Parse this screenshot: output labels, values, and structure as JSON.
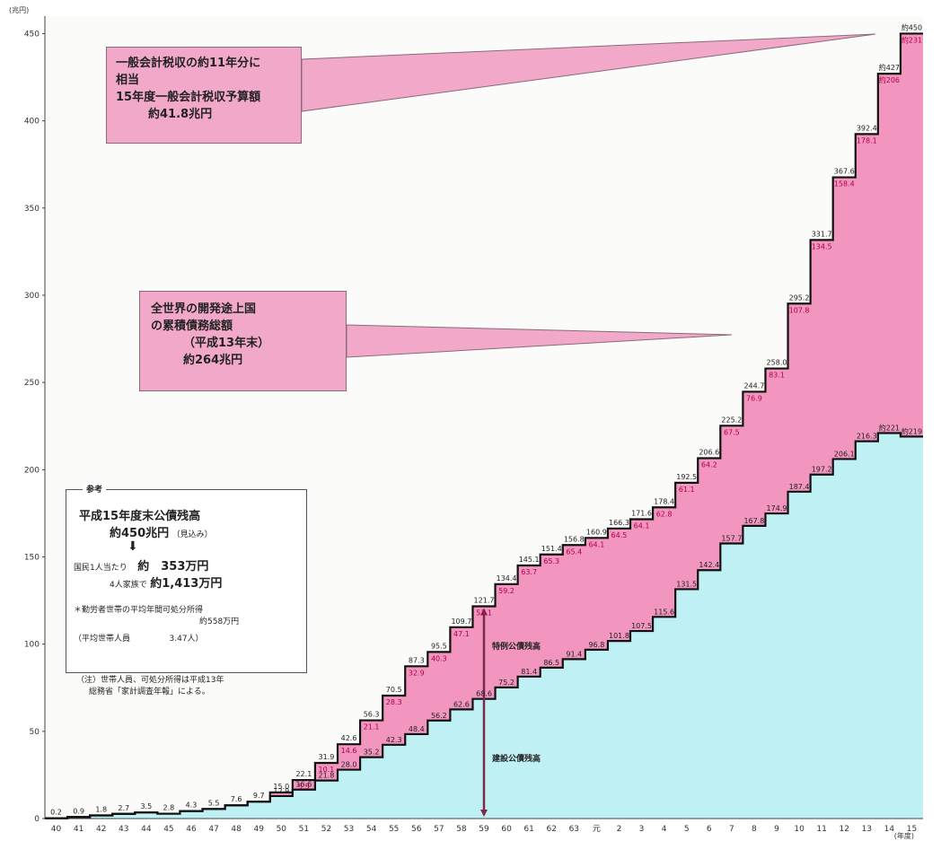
{
  "chart_data": {
    "type": "area",
    "title": "",
    "y_unit_label": "(兆円)",
    "x_unit_label": "(年度)",
    "ylim": [
      0,
      460
    ],
    "yticks": [
      "0",
      "50",
      "100",
      "150",
      "200",
      "250",
      "300",
      "350",
      "400",
      "450"
    ],
    "categories": [
      "40",
      "41",
      "42",
      "43",
      "44",
      "45",
      "46",
      "47",
      "48",
      "49",
      "50",
      "51",
      "52",
      "53",
      "54",
      "55",
      "56",
      "57",
      "58",
      "59",
      "60",
      "61",
      "62",
      "63",
      "元",
      "2",
      "3",
      "4",
      "5",
      "6",
      "7",
      "8",
      "9",
      "10",
      "11",
      "12",
      "13",
      "14",
      "15"
    ],
    "totals": [
      0.2,
      0.9,
      1.8,
      2.7,
      3.5,
      2.8,
      4.3,
      5.5,
      7.6,
      9.7,
      15.0,
      22.1,
      31.9,
      42.6,
      56.3,
      70.5,
      87.3,
      95.5,
      109.7,
      121.7,
      134.4,
      145.1,
      151.4,
      156.8,
      160.9,
      166.3,
      171.6,
      178.4,
      192.5,
      206.6,
      225.2,
      244.7,
      258.0,
      295.2,
      331.7,
      367.6,
      392.4,
      427.0,
      450.0
    ],
    "series": [
      {
        "name": "特例公債残高",
        "color": "#f082b4",
        "labels": [
          "",
          "",
          "",
          "",
          "",
          "",
          "",
          "",
          "",
          "",
          "",
          "5.5",
          "10.1",
          "14.6",
          "21.1",
          "28.3",
          "32.9",
          "40.3",
          "47.1",
          "53.1",
          "59.2",
          "63.7",
          "65.3",
          "65.4",
          "64.1",
          "64.5",
          "64.1",
          "62.8",
          "61.1",
          "64.2",
          "67.5",
          "76.9",
          "83.1",
          "107.8",
          "134.5",
          "158.4",
          "178.1",
          "約206",
          "約231"
        ],
        "values": [
          0,
          0,
          0,
          0,
          0,
          0,
          0,
          0,
          0,
          0,
          2.1,
          5.5,
          10.1,
          14.6,
          21.1,
          28.3,
          32.9,
          40.3,
          47.1,
          53.1,
          59.2,
          63.7,
          65.3,
          65.4,
          64.1,
          64.5,
          64.1,
          62.8,
          61.1,
          64.2,
          67.5,
          76.9,
          83.1,
          107.8,
          134.5,
          158.4,
          178.1,
          206,
          231
        ]
      },
      {
        "name": "建設公債残高",
        "color": "#bff0f4",
        "labels": [
          "",
          "",
          "",
          "",
          "",
          "",
          "",
          "",
          "",
          "",
          "12.9",
          "16.6",
          "21.8",
          "28.0",
          "35.2",
          "42.3",
          "48.4",
          "56.2",
          "62.6",
          "68.6",
          "75.2",
          "81.4",
          "86.5",
          "91.4",
          "96.8",
          "101.8",
          "107.5",
          "115.6",
          "131.5",
          "142.4",
          "157.7",
          "167.8",
          "174.9",
          "187.4",
          "197.2",
          "206.1",
          "216.3",
          "約221",
          "約219"
        ],
        "values": [
          0.2,
          0.9,
          1.8,
          2.7,
          3.5,
          2.8,
          4.3,
          5.5,
          7.6,
          9.7,
          12.9,
          16.6,
          21.8,
          28.0,
          35.2,
          42.3,
          48.4,
          56.2,
          62.6,
          68.6,
          75.2,
          81.4,
          86.5,
          91.4,
          96.8,
          101.8,
          107.5,
          115.6,
          131.5,
          142.4,
          157.7,
          167.8,
          174.9,
          187.4,
          197.2,
          206.1,
          216.3,
          221,
          219
        ]
      }
    ],
    "total_labels": [
      "0.2",
      "0.9",
      "1.8",
      "2.7",
      "3.5",
      "2.8",
      "4.3",
      "5.5",
      "7.6",
      "9.7",
      "15.0",
      "22.1",
      "31.9",
      "42.6",
      "56.3",
      "70.5",
      "87.3",
      "95.5",
      "109.7",
      "121.7",
      "134.4",
      "145.1",
      "151.4",
      "156.8",
      "160.9",
      "166.3",
      "171.6",
      "178.4",
      "192.5",
      "206.6",
      "225.2",
      "244.7",
      "258.0",
      "295.2",
      "331.7",
      "367.6",
      "392.4",
      "約427",
      "約450"
    ],
    "series_annotations": {
      "special": "特例公債残高",
      "construction": "建設公債残高"
    },
    "callout1": {
      "line1": "一般会計税収の約11年分に",
      "line2": "相当",
      "line3": "15年度一般会計税収予算額",
      "line4": "約41.8兆円"
    },
    "callout2": {
      "line1": "全世界の開発途上国",
      "line2": "の累積債務総額",
      "line3": "（平成13年末）",
      "line4": "約264兆円"
    },
    "reference": {
      "head": "参考",
      "line1": "平成15年度末公債残高",
      "line2": "約450兆円",
      "line2b": "（見込み）",
      "arrow": "⬇",
      "line3a": "国民1人当たり",
      "line3b": "約　353万円",
      "line4a": "4人家族で",
      "line4b": "約1,413万円",
      "line5": "＊勤労者世帯の平均年間可処分所得",
      "line6": "約558万円",
      "line7a": "（平均世帯人員",
      "line7b": "3.47人）"
    },
    "note": {
      "line1": "（注）世帯人員、可処分所得は平成13年",
      "line2": "総務省「家計調査年報」による。"
    }
  }
}
